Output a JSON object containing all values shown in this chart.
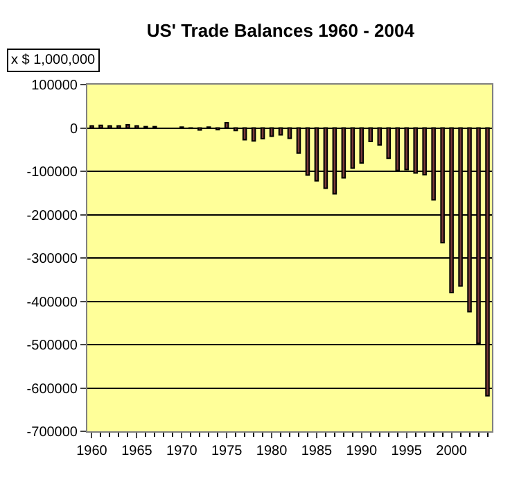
{
  "chart_data": {
    "type": "bar",
    "title": "US' Trade Balances 1960 - 2004",
    "annotations": [
      "x $ 1,000,000"
    ],
    "x": [
      1960,
      1961,
      1962,
      1963,
      1964,
      1965,
      1966,
      1967,
      1968,
      1969,
      1970,
      1971,
      1972,
      1973,
      1974,
      1975,
      1976,
      1977,
      1978,
      1979,
      1980,
      1981,
      1982,
      1983,
      1984,
      1985,
      1986,
      1987,
      1988,
      1989,
      1990,
      1991,
      1992,
      1993,
      1994,
      1995,
      1996,
      1997,
      1998,
      1999,
      2000,
      2001,
      2002,
      2003,
      2004
    ],
    "series": [
      {
        "color": "#7a3a3a",
        "values": [
          5000,
          6000,
          5000,
          5000,
          7000,
          5000,
          3000,
          3000,
          null,
          null,
          2000,
          -1000,
          -5000,
          2000,
          -4000,
          12000,
          -6000,
          -27000,
          -30000,
          -25000,
          -19000,
          -16000,
          -24000,
          -58000,
          -109000,
          -122000,
          -139000,
          -152000,
          -115000,
          -93000,
          -81000,
          -31000,
          -39000,
          -70000,
          -98000,
          -96000,
          -104000,
          -108000,
          -166000,
          -265000,
          -380000,
          -365000,
          -424000,
          -497000,
          -618000
        ]
      }
    ],
    "xlim": [
      1959.5,
      2004.5
    ],
    "xticks": [
      1960,
      1965,
      1970,
      1975,
      1980,
      1985,
      1990,
      1995,
      2000
    ],
    "ylim": [
      -700000,
      100000
    ],
    "yticks": [
      -700000,
      -600000,
      -500000,
      -400000,
      -300000,
      -200000,
      -100000,
      0,
      100000
    ],
    "grid": "y"
  }
}
